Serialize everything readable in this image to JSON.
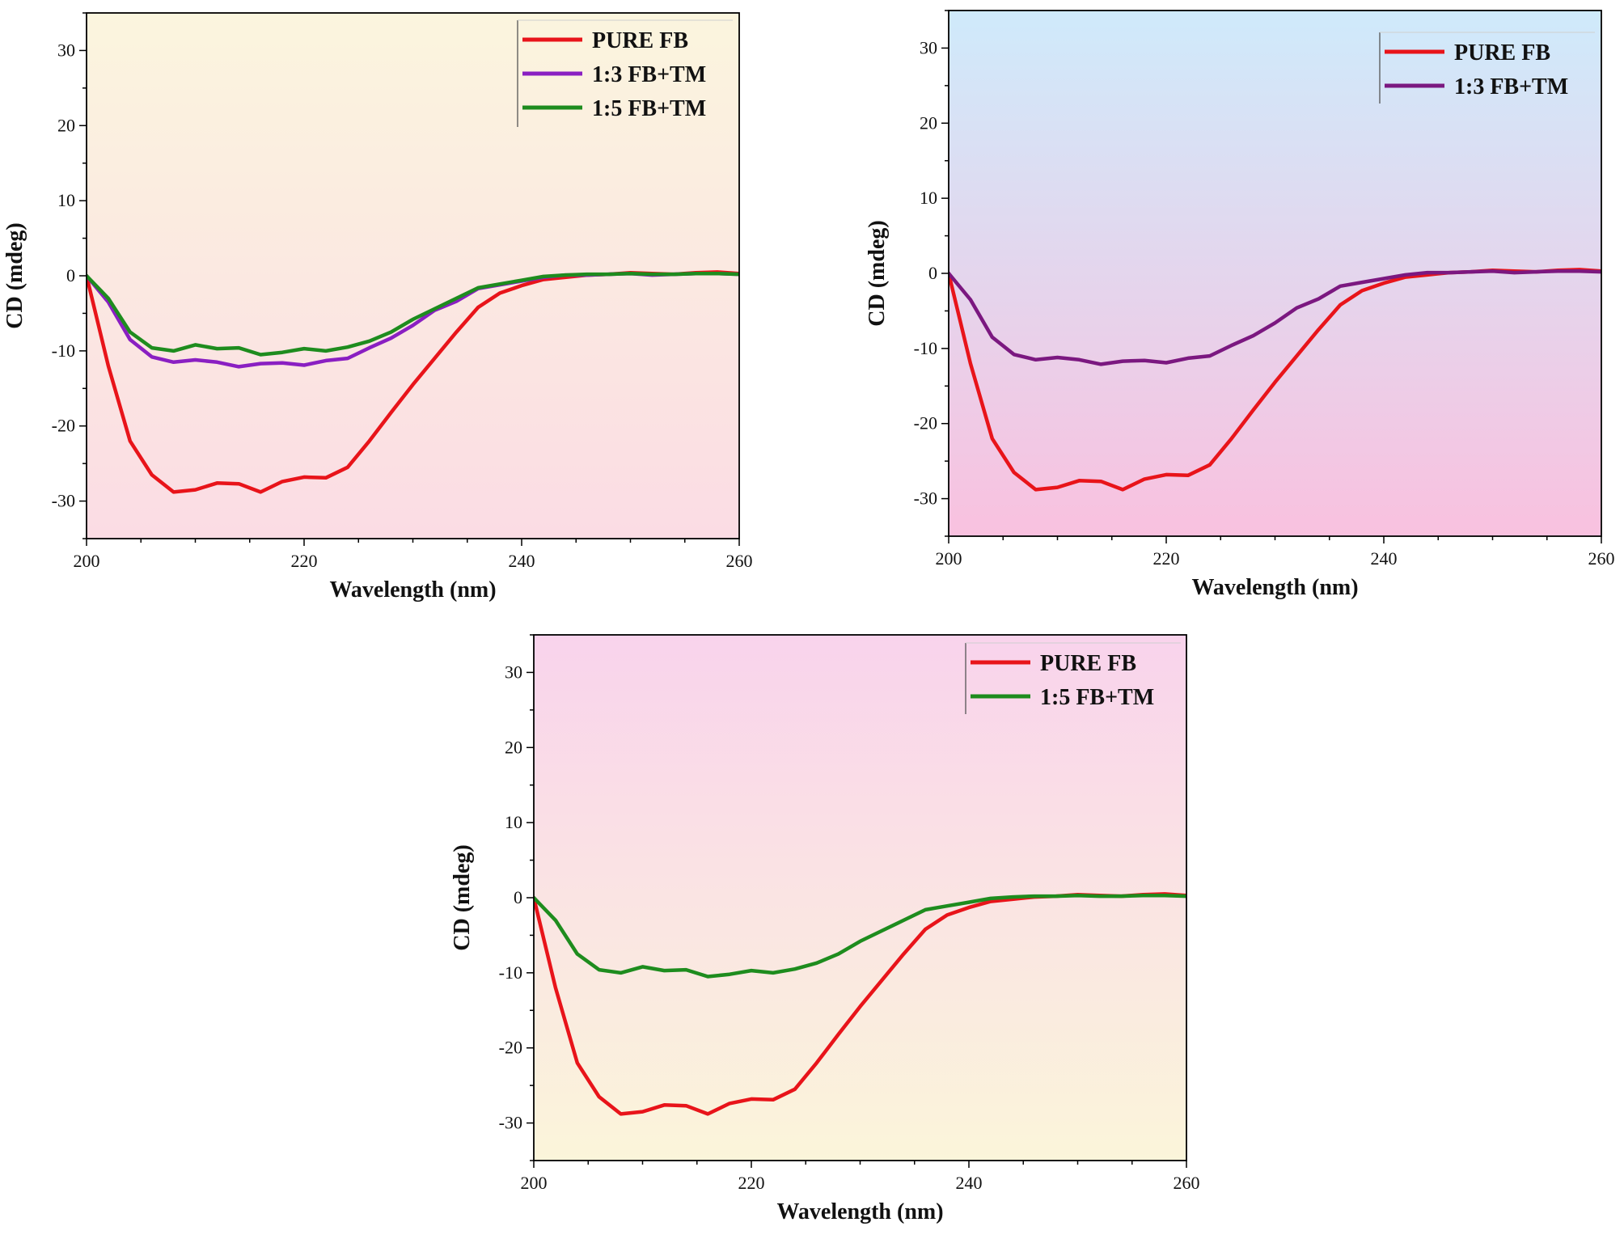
{
  "chart_data": [
    {
      "type": "line",
      "panel": "top-left",
      "xlabel": "Wavelength (nm)",
      "ylabel": "CD (mdeg)",
      "xlim": [
        200,
        260
      ],
      "ylim": [
        -35,
        35
      ],
      "xticks": [
        200,
        220,
        240,
        260
      ],
      "yticks": [
        -30,
        -20,
        -10,
        0,
        10,
        20,
        30
      ],
      "grid": false,
      "legend": "top-right",
      "background": {
        "top": "#FBF5DE",
        "bottom": "#FBDCE4"
      },
      "x": [
        200,
        202,
        204,
        206,
        208,
        210,
        212,
        214,
        216,
        218,
        220,
        222,
        224,
        226,
        228,
        230,
        232,
        234,
        236,
        238,
        240,
        242,
        244,
        246,
        248,
        250,
        252,
        254,
        256,
        258,
        260
      ],
      "series": [
        {
          "name": "PURE FB",
          "color": "#E8141A",
          "values": [
            0,
            -12,
            -22,
            -26.5,
            -28.8,
            -28.5,
            -27.6,
            -27.7,
            -28.8,
            -27.4,
            -26.8,
            -26.9,
            -25.5,
            -22,
            -18.2,
            -14.5,
            -11,
            -7.5,
            -4.2,
            -2.3,
            -1.3,
            -0.5,
            -0.2,
            0.1,
            0.2,
            0.4,
            0.3,
            0.2,
            0.4,
            0.5,
            0.3
          ]
        },
        {
          "name": "1:3 FB+TM",
          "color": "#8A1FC2",
          "values": [
            0,
            -3.5,
            -8.5,
            -10.8,
            -11.5,
            -11.2,
            -11.5,
            -12.1,
            -11.7,
            -11.6,
            -11.9,
            -11.3,
            -11,
            -9.6,
            -8.3,
            -6.6,
            -4.6,
            -3.4,
            -1.7,
            -1.2,
            -0.7,
            -0.2,
            0.1,
            0.1,
            0.2,
            0.3,
            0.1,
            0.2,
            0.3,
            0.3,
            0.2
          ]
        },
        {
          "name": "1:5 FB+TM",
          "color": "#1E8C1E",
          "values": [
            0,
            -3,
            -7.5,
            -9.6,
            -10,
            -9.2,
            -9.7,
            -9.6,
            -10.5,
            -10.2,
            -9.7,
            -10,
            -9.5,
            -8.7,
            -7.5,
            -5.8,
            -4.4,
            -3,
            -1.6,
            -1.1,
            -0.6,
            -0.1,
            0.1,
            0.2,
            0.2,
            0.3,
            0.2,
            0.2,
            0.3,
            0.3,
            0.2
          ]
        }
      ]
    },
    {
      "type": "line",
      "panel": "top-right",
      "xlabel": "Wavelength (nm)",
      "ylabel": "CD (mdeg)",
      "xlim": [
        200,
        260
      ],
      "ylim": [
        -35,
        35
      ],
      "xticks": [
        200,
        220,
        240,
        260
      ],
      "yticks": [
        -30,
        -20,
        -10,
        0,
        10,
        20,
        30
      ],
      "grid": false,
      "legend": "top-right",
      "background": {
        "top": "#CFEAFB",
        "bottom": "#F9C1DF"
      },
      "x": [
        200,
        202,
        204,
        206,
        208,
        210,
        212,
        214,
        216,
        218,
        220,
        222,
        224,
        226,
        228,
        230,
        232,
        234,
        236,
        238,
        240,
        242,
        244,
        246,
        248,
        250,
        252,
        254,
        256,
        258,
        260
      ],
      "series": [
        {
          "name": "PURE FB",
          "color": "#E8141A",
          "values": [
            0,
            -12,
            -22,
            -26.5,
            -28.8,
            -28.5,
            -27.6,
            -27.7,
            -28.8,
            -27.4,
            -26.8,
            -26.9,
            -25.5,
            -22,
            -18.2,
            -14.5,
            -11,
            -7.5,
            -4.2,
            -2.3,
            -1.3,
            -0.5,
            -0.2,
            0.1,
            0.2,
            0.4,
            0.3,
            0.2,
            0.4,
            0.5,
            0.3
          ]
        },
        {
          "name": "1:3 FB+TM",
          "color": "#7B1880",
          "values": [
            0,
            -3.5,
            -8.5,
            -10.8,
            -11.5,
            -11.2,
            -11.5,
            -12.1,
            -11.7,
            -11.6,
            -11.9,
            -11.3,
            -11,
            -9.6,
            -8.3,
            -6.6,
            -4.6,
            -3.4,
            -1.7,
            -1.2,
            -0.7,
            -0.2,
            0.1,
            0.1,
            0.2,
            0.3,
            0.1,
            0.2,
            0.3,
            0.3,
            0.2
          ]
        }
      ]
    },
    {
      "type": "line",
      "panel": "bottom",
      "xlabel": "Wavelength (nm)",
      "ylabel": "CD (mdeg)",
      "xlim": [
        200,
        260
      ],
      "ylim": [
        -35,
        35
      ],
      "xticks": [
        200,
        220,
        240,
        260
      ],
      "yticks": [
        -30,
        -20,
        -10,
        0,
        10,
        20,
        30
      ],
      "grid": false,
      "legend": "top-right",
      "background": {
        "top": "#F9D3EC",
        "bottom": "#FBF5DA"
      },
      "x": [
        200,
        202,
        204,
        206,
        208,
        210,
        212,
        214,
        216,
        218,
        220,
        222,
        224,
        226,
        228,
        230,
        232,
        234,
        236,
        238,
        240,
        242,
        244,
        246,
        248,
        250,
        252,
        254,
        256,
        258,
        260
      ],
      "series": [
        {
          "name": "PURE FB",
          "color": "#E8141A",
          "values": [
            0,
            -12,
            -22,
            -26.5,
            -28.8,
            -28.5,
            -27.6,
            -27.7,
            -28.8,
            -27.4,
            -26.8,
            -26.9,
            -25.5,
            -22,
            -18.2,
            -14.5,
            -11,
            -7.5,
            -4.2,
            -2.3,
            -1.3,
            -0.5,
            -0.2,
            0.1,
            0.2,
            0.4,
            0.3,
            0.2,
            0.4,
            0.5,
            0.3
          ]
        },
        {
          "name": "1:5 FB+TM",
          "color": "#1E8C1E",
          "values": [
            0,
            -3,
            -7.5,
            -9.6,
            -10,
            -9.2,
            -9.7,
            -9.6,
            -10.5,
            -10.2,
            -9.7,
            -10,
            -9.5,
            -8.7,
            -7.5,
            -5.8,
            -4.4,
            -3,
            -1.6,
            -1.1,
            -0.6,
            -0.1,
            0.1,
            0.2,
            0.2,
            0.3,
            0.2,
            0.2,
            0.3,
            0.3,
            0.2
          ]
        }
      ]
    }
  ]
}
